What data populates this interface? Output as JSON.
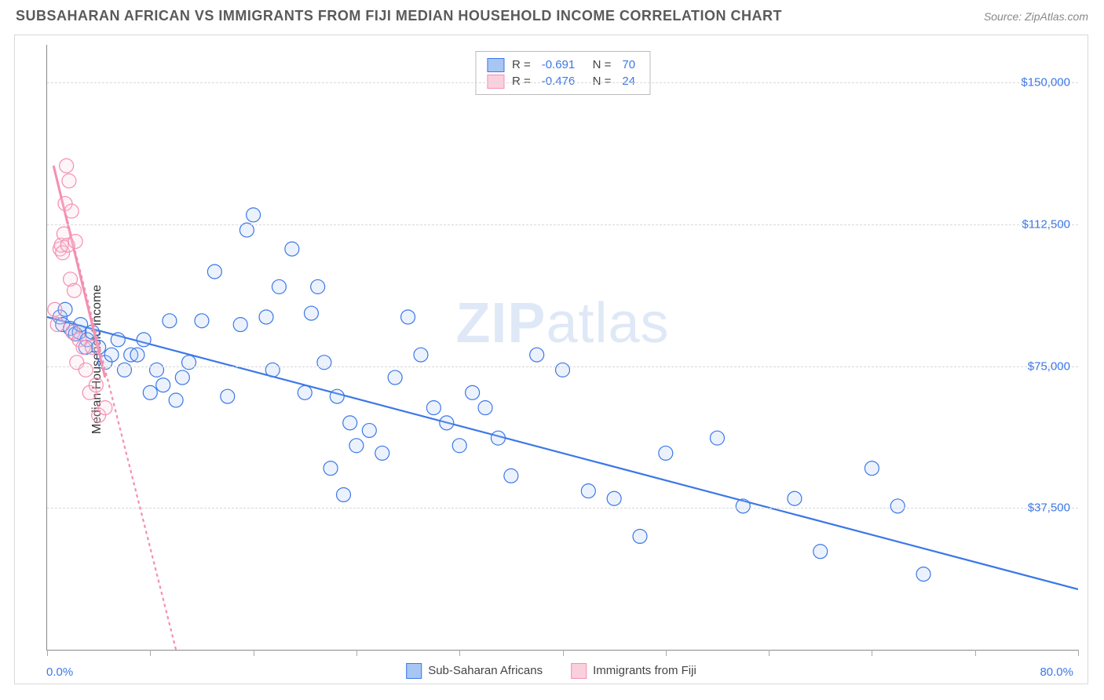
{
  "header": {
    "title": "SUBSAHARAN AFRICAN VS IMMIGRANTS FROM FIJI MEDIAN HOUSEHOLD INCOME CORRELATION CHART",
    "source": "Source: ZipAtlas.com"
  },
  "watermark": {
    "bold": "ZIP",
    "light": "atlas"
  },
  "chart": {
    "type": "scatter",
    "background_color": "#ffffff",
    "border_color": "#d9d9d9",
    "axis_color": "#888888",
    "grid_color": "#d9d9d9",
    "tick_label_color": "#3b78e7",
    "axis_text_color": "#333333",
    "xmin": 0.0,
    "xmax": 80.0,
    "xmin_label": "0.0%",
    "xmax_label": "80.0%",
    "x_tick_positions": [
      0,
      8,
      16,
      24,
      32,
      40,
      48,
      56,
      64,
      72,
      80
    ],
    "ymin": 0,
    "ymax": 160000,
    "y_gridlines": [
      {
        "value": 37500,
        "label": "$37,500"
      },
      {
        "value": 75000,
        "label": "$75,000"
      },
      {
        "value": 112500,
        "label": "$112,500"
      },
      {
        "value": 150000,
        "label": "$150,000"
      }
    ],
    "y_axis_title": "Median Household Income",
    "marker_radius": 9,
    "marker_fill_opacity": 0.22,
    "regression_line_width": 2.2,
    "series": [
      {
        "name": "Sub-Saharan Africans",
        "color_stroke": "#3b78e7",
        "color_fill": "#a8c6f4",
        "R": -0.691,
        "N": 70,
        "regression": {
          "x1": 0,
          "y1": 88000,
          "x2": 80,
          "y2": 16000,
          "dash": "none"
        },
        "points": [
          [
            1.0,
            88000
          ],
          [
            1.2,
            86000
          ],
          [
            1.4,
            90000
          ],
          [
            1.8,
            85000
          ],
          [
            2.0,
            84000
          ],
          [
            2.2,
            83500
          ],
          [
            2.5,
            84000
          ],
          [
            2.6,
            86000
          ],
          [
            3.0,
            80000
          ],
          [
            3.1,
            82000
          ],
          [
            3.5,
            84000
          ],
          [
            4.0,
            80000
          ],
          [
            4.5,
            76000
          ],
          [
            5.0,
            78000
          ],
          [
            5.5,
            82000
          ],
          [
            6.0,
            74000
          ],
          [
            6.5,
            78000
          ],
          [
            7.0,
            78000
          ],
          [
            7.5,
            82000
          ],
          [
            8.0,
            68000
          ],
          [
            8.5,
            74000
          ],
          [
            9.0,
            70000
          ],
          [
            9.5,
            87000
          ],
          [
            10.0,
            66000
          ],
          [
            10.5,
            72000
          ],
          [
            11.0,
            76000
          ],
          [
            12.0,
            87000
          ],
          [
            13.0,
            100000
          ],
          [
            14.0,
            67000
          ],
          [
            15.0,
            86000
          ],
          [
            15.5,
            111000
          ],
          [
            16.0,
            115000
          ],
          [
            17.0,
            88000
          ],
          [
            17.5,
            74000
          ],
          [
            18.0,
            96000
          ],
          [
            19.0,
            106000
          ],
          [
            20.0,
            68000
          ],
          [
            20.5,
            89000
          ],
          [
            21.0,
            96000
          ],
          [
            21.5,
            76000
          ],
          [
            22.0,
            48000
          ],
          [
            22.5,
            67000
          ],
          [
            23.0,
            41000
          ],
          [
            23.5,
            60000
          ],
          [
            24.0,
            54000
          ],
          [
            25.0,
            58000
          ],
          [
            26.0,
            52000
          ],
          [
            27.0,
            72000
          ],
          [
            28.0,
            88000
          ],
          [
            29.0,
            78000
          ],
          [
            30.0,
            64000
          ],
          [
            31.0,
            60000
          ],
          [
            32.0,
            54000
          ],
          [
            33.0,
            68000
          ],
          [
            34.0,
            64000
          ],
          [
            35.0,
            56000
          ],
          [
            36.0,
            46000
          ],
          [
            38.0,
            78000
          ],
          [
            40.0,
            74000
          ],
          [
            42.0,
            42000
          ],
          [
            44.0,
            40000
          ],
          [
            46.0,
            30000
          ],
          [
            48.0,
            52000
          ],
          [
            52.0,
            56000
          ],
          [
            54.0,
            38000
          ],
          [
            58.0,
            40000
          ],
          [
            60.0,
            26000
          ],
          [
            64.0,
            48000
          ],
          [
            66.0,
            38000
          ],
          [
            68.0,
            20000
          ]
        ]
      },
      {
        "name": "Immigrants from Fiji",
        "color_stroke": "#f48fb1",
        "color_fill": "#fbd0dd",
        "R": -0.476,
        "N": 24,
        "regression": {
          "x1": 0.5,
          "y1": 128000,
          "x2": 10,
          "y2": 0,
          "dash": "4,4"
        },
        "regression_solid_extent": {
          "x1": 0.5,
          "y1": 128000,
          "x2": 4.5,
          "y2": 72000
        },
        "points": [
          [
            0.6,
            90000
          ],
          [
            0.8,
            86000
          ],
          [
            1.0,
            106000
          ],
          [
            1.1,
            107000
          ],
          [
            1.2,
            105000
          ],
          [
            1.3,
            110000
          ],
          [
            1.4,
            118000
          ],
          [
            1.5,
            128000
          ],
          [
            1.6,
            107000
          ],
          [
            1.7,
            124000
          ],
          [
            1.8,
            98000
          ],
          [
            1.9,
            116000
          ],
          [
            2.0,
            84000
          ],
          [
            2.1,
            95000
          ],
          [
            2.2,
            108000
          ],
          [
            2.3,
            76000
          ],
          [
            2.5,
            82000
          ],
          [
            2.8,
            80000
          ],
          [
            3.0,
            74000
          ],
          [
            3.3,
            68000
          ],
          [
            3.5,
            80000
          ],
          [
            3.8,
            70000
          ],
          [
            4.0,
            62000
          ],
          [
            4.5,
            64000
          ]
        ]
      }
    ]
  },
  "legend": {
    "series_labels": [
      "Sub-Saharan Africans",
      "Immigrants from Fiji"
    ],
    "stat_label_R": "R =",
    "stat_label_N": "N ="
  }
}
